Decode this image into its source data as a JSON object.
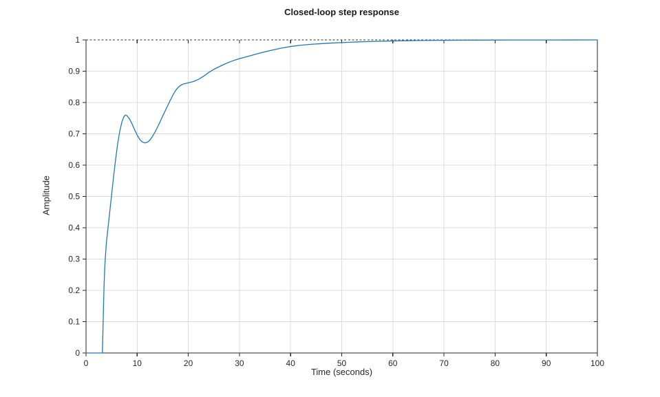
{
  "figure": {
    "background": "#ffffff"
  },
  "chart_data": {
    "type": "line",
    "title": "Closed-loop step response",
    "xlabel": "Time (seconds)",
    "ylabel": "Amplitude",
    "xlim": [
      0,
      100
    ],
    "ylim": [
      0,
      1
    ],
    "xticks": [
      0,
      10,
      20,
      30,
      40,
      50,
      60,
      70,
      80,
      90,
      100
    ],
    "yticks": [
      0,
      0.1,
      0.2,
      0.3,
      0.4,
      0.5,
      0.6,
      0.7,
      0.8,
      0.9,
      1
    ],
    "grid": true,
    "legend": "none",
    "colors": {
      "curve": "#1f77b4",
      "grid": "#dcdcdc",
      "axis": "#262626",
      "reference": "#333333",
      "background": "#ffffff"
    },
    "reference_line": {
      "y": 1,
      "style": "dashed",
      "color": "#333333"
    },
    "series": [
      {
        "name": "closed-loop step response",
        "color": "#1f77b4",
        "x": [
          0,
          1,
          2,
          3,
          3.2,
          3.35,
          3.5,
          3.65,
          3.8,
          4,
          4.3,
          4.6,
          5,
          5.4,
          5.8,
          6.2,
          6.6,
          7,
          7.4,
          7.7,
          8,
          8.5,
          9,
          9.5,
          10,
          10.5,
          11,
          11.5,
          12,
          12.5,
          13,
          13.5,
          14,
          14.5,
          15,
          15.5,
          16,
          16.5,
          17,
          17.5,
          18,
          18.5,
          19,
          19.5,
          20,
          21,
          22,
          23,
          24,
          25,
          26,
          27,
          28,
          29,
          30,
          32,
          34,
          36,
          38,
          40,
          42,
          44,
          46,
          48,
          50,
          53,
          56,
          60,
          65,
          70,
          75,
          80,
          85,
          90,
          95,
          100
        ],
        "y": [
          0,
          0,
          0,
          0,
          0,
          0.1,
          0.2,
          0.27,
          0.31,
          0.355,
          0.4,
          0.445,
          0.505,
          0.565,
          0.62,
          0.67,
          0.708,
          0.737,
          0.755,
          0.76,
          0.758,
          0.748,
          0.732,
          0.713,
          0.696,
          0.682,
          0.674,
          0.671,
          0.673,
          0.68,
          0.692,
          0.706,
          0.722,
          0.739,
          0.757,
          0.774,
          0.791,
          0.808,
          0.824,
          0.838,
          0.848,
          0.855,
          0.859,
          0.861,
          0.863,
          0.867,
          0.874,
          0.884,
          0.896,
          0.906,
          0.914,
          0.922,
          0.929,
          0.935,
          0.94,
          0.949,
          0.958,
          0.966,
          0.973,
          0.979,
          0.983,
          0.986,
          0.988,
          0.99,
          0.9915,
          0.9935,
          0.995,
          0.9966,
          0.998,
          0.9988,
          0.9993,
          0.9996,
          0.9997,
          0.9998,
          0.9999,
          1
        ]
      }
    ]
  }
}
